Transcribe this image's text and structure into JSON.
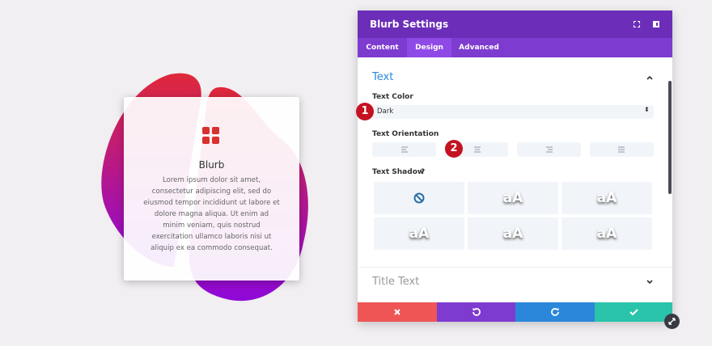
{
  "blurb": {
    "title": "Blurb",
    "lines": [
      "Lorem ipsum dolor sit amet,",
      "consectetur adipiscing elit, sed do",
      "eiusmod tempor incididunt ut labore et",
      "dolore magna aliqua. Ut enim ad",
      "minim veniam, quis nostrud",
      "exercitation ullamco laboris nisi ut",
      "aliquip ex ea commodo consequat."
    ]
  },
  "panel": {
    "title": "Blurb Settings",
    "tabs": [
      "Content",
      "Design",
      "Advanced"
    ],
    "section": "Text",
    "text_color_label": "Text Color",
    "text_color_value": "Dark",
    "badges": [
      "1",
      "2"
    ],
    "orientation_label": "Text Orientation",
    "shadow_label": "Text Shadow",
    "help": "?",
    "shadow_previews": [
      "aA",
      "aA",
      "aA",
      "aA",
      "aA"
    ],
    "collapsed_section": "Title Text"
  }
}
